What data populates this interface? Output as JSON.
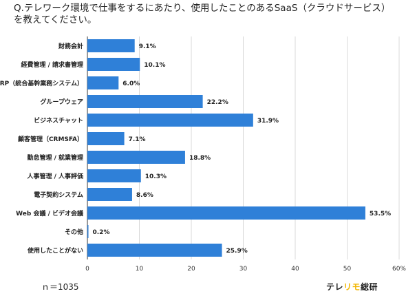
{
  "question": "Q.テレワーク環境で仕事をするにあたり、使用したことのあるSaaS（クラウドサービス）を教えてください。",
  "footer": {
    "n_label": "ｎ＝1035"
  },
  "brand": {
    "part1": "テレ",
    "part2": "リモ",
    "part3": "総研",
    "color_dark": "#1a1a1a",
    "color_accent": "#f2b705"
  },
  "colors": {
    "bar": "#2f80d8",
    "grid": "#d9d9d9",
    "axis": "#333333"
  },
  "chart_data": {
    "type": "bar",
    "orientation": "horizontal",
    "categories": [
      "財務会計",
      "経費管理 / 請求書管理",
      "ERP（統合基幹業務システム）",
      "グループウェア",
      "ビジネスチャット",
      "顧客管理（CRMSFA）",
      "勤怠管理 / 就業管理",
      "人事管理 / 人事評価",
      "電子契約システム",
      "Web 会議 / ビデオ会議",
      "その他",
      "使用したことがない"
    ],
    "values": [
      9.1,
      10.1,
      6.0,
      22.2,
      31.9,
      7.1,
      18.8,
      10.3,
      8.6,
      53.5,
      0.2,
      25.9
    ],
    "value_labels": [
      "9.1%",
      "10.1%",
      "6.0%",
      "22.2%",
      "31.9%",
      "7.1%",
      "18.8%",
      "10.3%",
      "8.6%",
      "53.5%",
      "0.2%",
      "25.9%"
    ],
    "xlim": [
      0,
      60
    ],
    "xticks": [
      "0",
      "10",
      "20",
      "30",
      "40",
      "50",
      "60%"
    ],
    "grid": true
  }
}
